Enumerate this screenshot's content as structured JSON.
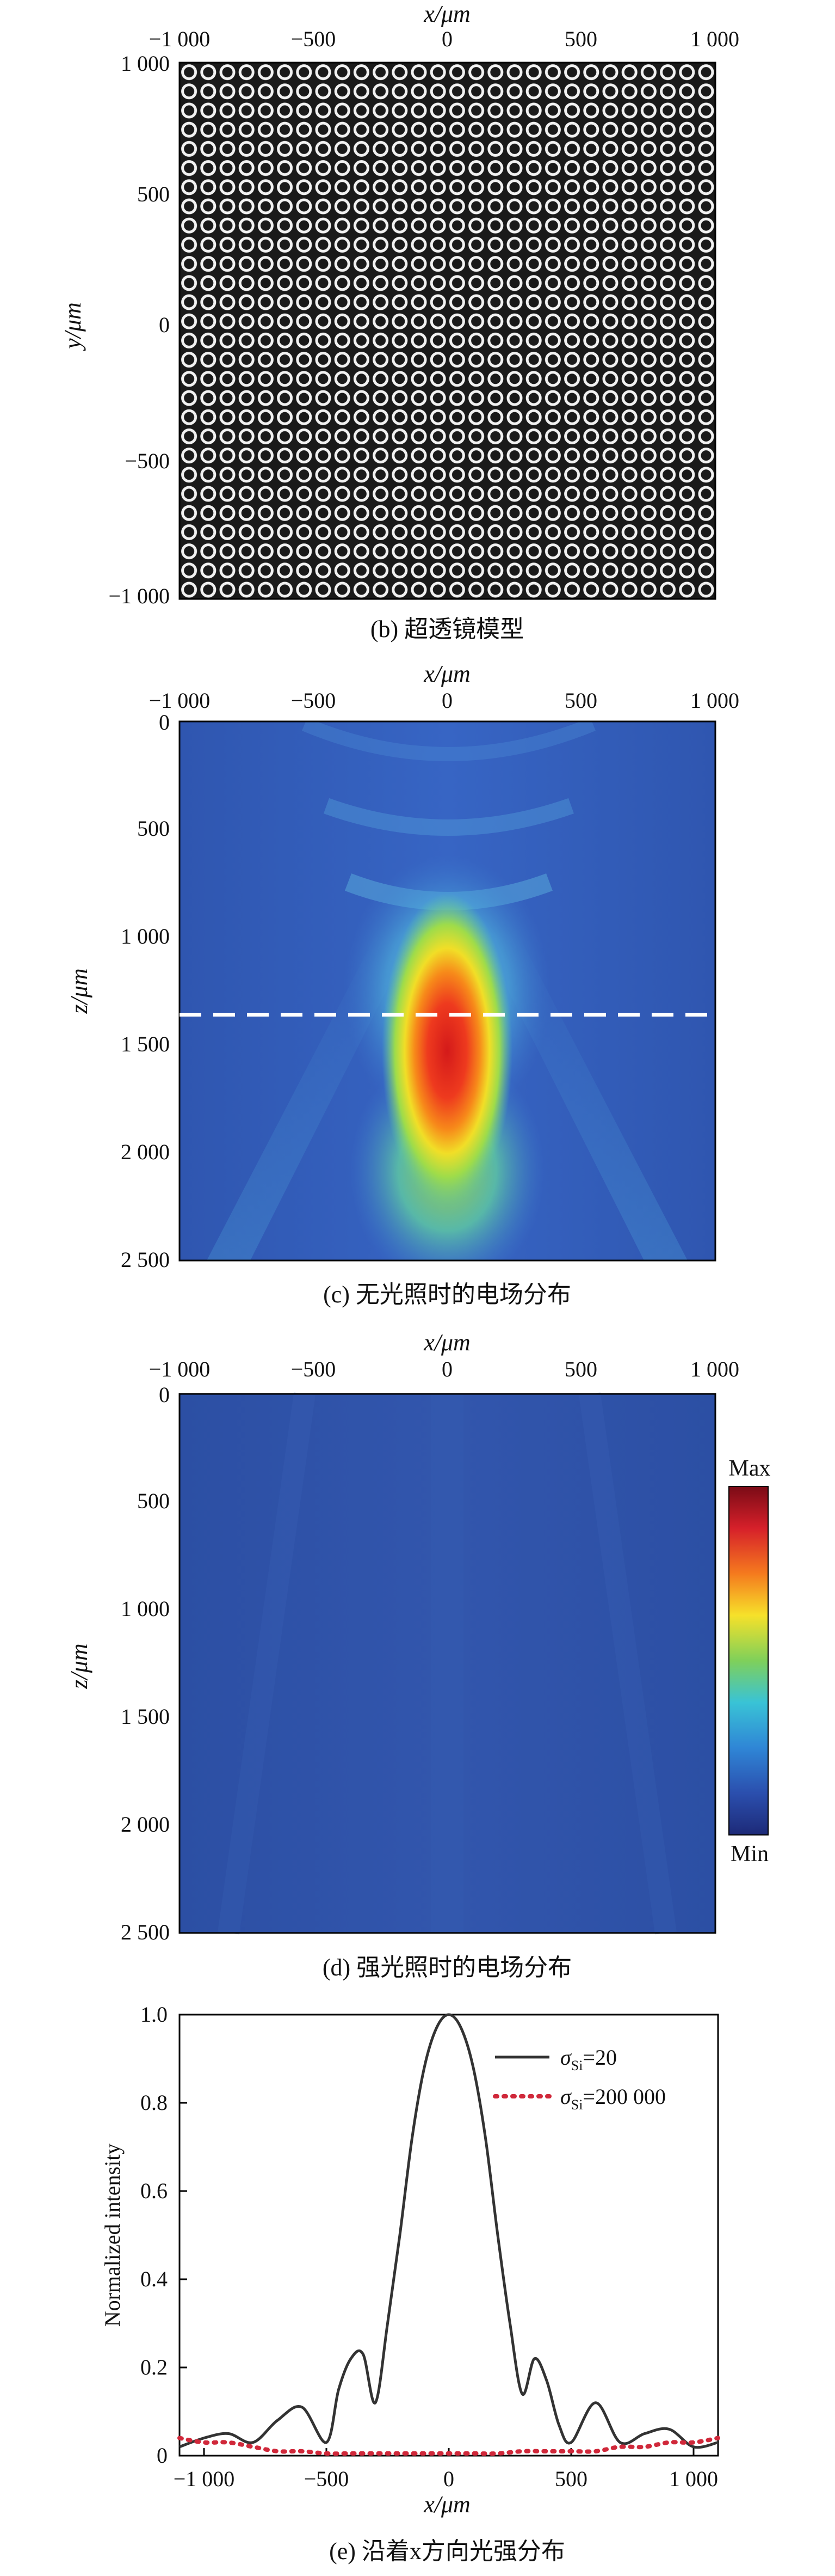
{
  "panel_b": {
    "caption": "(b) 超透镜模型",
    "x_axis_label": "x/μm",
    "y_axis_label": "y/μm",
    "x_ticks": [
      "−1 000",
      "−500",
      "0",
      "500",
      "1 000"
    ],
    "y_ticks": [
      "1 000",
      "500",
      "0",
      "−500",
      "−1 000"
    ],
    "tile_background": "#1a1a1a",
    "ring_color": "#f2f2f2"
  },
  "panel_c": {
    "caption": "(c) 无光照时的电场分布",
    "x_axis_label": "x/μm",
    "y_axis_label": "z/μm",
    "x_ticks": [
      "−1 000",
      "−500",
      "0",
      "500",
      "1 000"
    ],
    "y_ticks": [
      "0",
      "500",
      "1 000",
      "1 500",
      "2 000",
      "2 500"
    ],
    "dashed_line_z": 1360
  },
  "panel_d": {
    "caption": "(d) 强光照时的电场分布",
    "x_axis_label": "x/μm",
    "y_axis_label": "z/μm",
    "x_ticks": [
      "−1 000",
      "−500",
      "0",
      "500",
      "1 000"
    ],
    "y_ticks": [
      "0",
      "500",
      "1 000",
      "1 500",
      "2 000",
      "2 500"
    ],
    "colorbar_max": "Max",
    "colorbar_min": "Min",
    "field_color": "#2f53a8"
  },
  "panel_e": {
    "caption": "(e) 沿着x方向光强分布",
    "x_axis_label": "x/μm",
    "y_axis_label": "Normalized intensity",
    "x_ticks": [
      "−1 000",
      "−500",
      "0",
      "500",
      "1 000"
    ],
    "y_ticks": [
      "1.0",
      "0.8",
      "0.6",
      "0.4",
      "0.2",
      "0"
    ],
    "legend_1_sigma": "σ",
    "legend_1_sub": "Si",
    "legend_1_value": "=20",
    "legend_2_sigma": "σ",
    "legend_2_sub": "Si",
    "legend_2_value": "=200 000",
    "series_1_color": "#333333",
    "series_2_color": "#d0283a"
  },
  "chart_data": [
    {
      "type": "heatmap",
      "panel": "b",
      "xlim": [
        -1000,
        1000
      ],
      "ylim": [
        -1000,
        1000
      ],
      "pattern": "periodic ring unit cells",
      "grid_cells": [
        28,
        28
      ]
    },
    {
      "type": "heatmap",
      "panel": "c",
      "xlim": [
        -1000,
        1000
      ],
      "ylim": [
        0,
        2500
      ],
      "focus_x": 0,
      "focus_z": 1400,
      "colormap": "jet",
      "dashed_line_z": 1360
    },
    {
      "type": "heatmap",
      "panel": "d",
      "xlim": [
        -1000,
        1000
      ],
      "ylim": [
        0,
        2500
      ],
      "colormap": "jet",
      "field": "uniform low"
    },
    {
      "type": "line",
      "panel": "e",
      "xlabel": "x/μm",
      "ylabel": "Normalized intensity",
      "xlim": [
        -1100,
        1100
      ],
      "ylim": [
        0,
        1.0
      ],
      "series": [
        {
          "name": "σSi=20",
          "x": [
            -1100,
            -1000,
            -900,
            -800,
            -700,
            -600,
            -500,
            -450,
            -400,
            -350,
            -300,
            -250,
            -200,
            -150,
            -100,
            -50,
            0,
            50,
            100,
            150,
            200,
            250,
            300,
            350,
            400,
            450,
            500,
            600,
            700,
            800,
            900,
            1000,
            1100
          ],
          "y": [
            0.02,
            0.04,
            0.05,
            0.03,
            0.08,
            0.11,
            0.03,
            0.15,
            0.22,
            0.23,
            0.12,
            0.3,
            0.5,
            0.72,
            0.88,
            0.97,
            1.0,
            0.97,
            0.88,
            0.72,
            0.5,
            0.3,
            0.14,
            0.22,
            0.17,
            0.07,
            0.03,
            0.12,
            0.03,
            0.05,
            0.06,
            0.02,
            0.03
          ]
        },
        {
          "name": "σSi=200 000",
          "x": [
            -1100,
            -1000,
            -900,
            -800,
            -700,
            -600,
            -500,
            -400,
            -300,
            -200,
            -100,
            0,
            100,
            200,
            300,
            400,
            500,
            600,
            700,
            800,
            900,
            1000,
            1100
          ],
          "y": [
            0.04,
            0.03,
            0.03,
            0.02,
            0.01,
            0.01,
            0.005,
            0.005,
            0.005,
            0.005,
            0.005,
            0.005,
            0.005,
            0.005,
            0.01,
            0.01,
            0.01,
            0.01,
            0.02,
            0.02,
            0.03,
            0.03,
            0.04
          ]
        }
      ]
    }
  ]
}
